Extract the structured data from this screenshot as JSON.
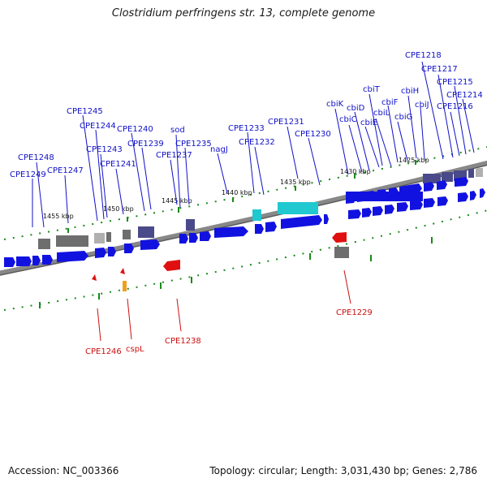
{
  "title": "Clostridium perfringens str. 13, complete genome",
  "footer": {
    "accession": "Accession: NC_003366",
    "summary": "Topology: circular; Length: 3,031,430 bp; Genes: 2,786"
  },
  "colors": {
    "forward_gene": "#1212e0",
    "reverse_gene": "#e01010",
    "backbone": "#7a7a7a",
    "tick": "#1a8a1a",
    "cds_gray": "#6e6e6e",
    "cds_purple": "#4a4a8a",
    "rna_cyan": "#20c8d0",
    "orange_gene": "#f0a020"
  },
  "scale_labels": [
    "1455 kbp",
    "1450 kbp",
    "1445 kbp",
    "1440 kbp",
    "1435 kbp",
    "1430 kbp",
    "1425 kbp"
  ],
  "forward_labels": [
    "CPE1249",
    "CPE1248",
    "CPE1247",
    "CPE1245",
    "CPE1244",
    "CPE1243",
    "CPE1241",
    "CPE1240",
    "CPE1239",
    "sod",
    "CPE1237",
    "CPE1235",
    "nagJ",
    "CPE1233",
    "CPE1232",
    "CPE1231",
    "CPE1230",
    "cbiK",
    "cbiC",
    "cbiD",
    "cbiE",
    "cbiT",
    "cbiL",
    "cbiF",
    "cbiG",
    "cbiH",
    "cbiJ",
    "CPE1218",
    "CPE1217",
    "CPE1216",
    "CPE1215",
    "CPE1214"
  ],
  "reverse_labels": [
    "CPE1246",
    "cspL",
    "CPE1238",
    "CPE1229"
  ]
}
